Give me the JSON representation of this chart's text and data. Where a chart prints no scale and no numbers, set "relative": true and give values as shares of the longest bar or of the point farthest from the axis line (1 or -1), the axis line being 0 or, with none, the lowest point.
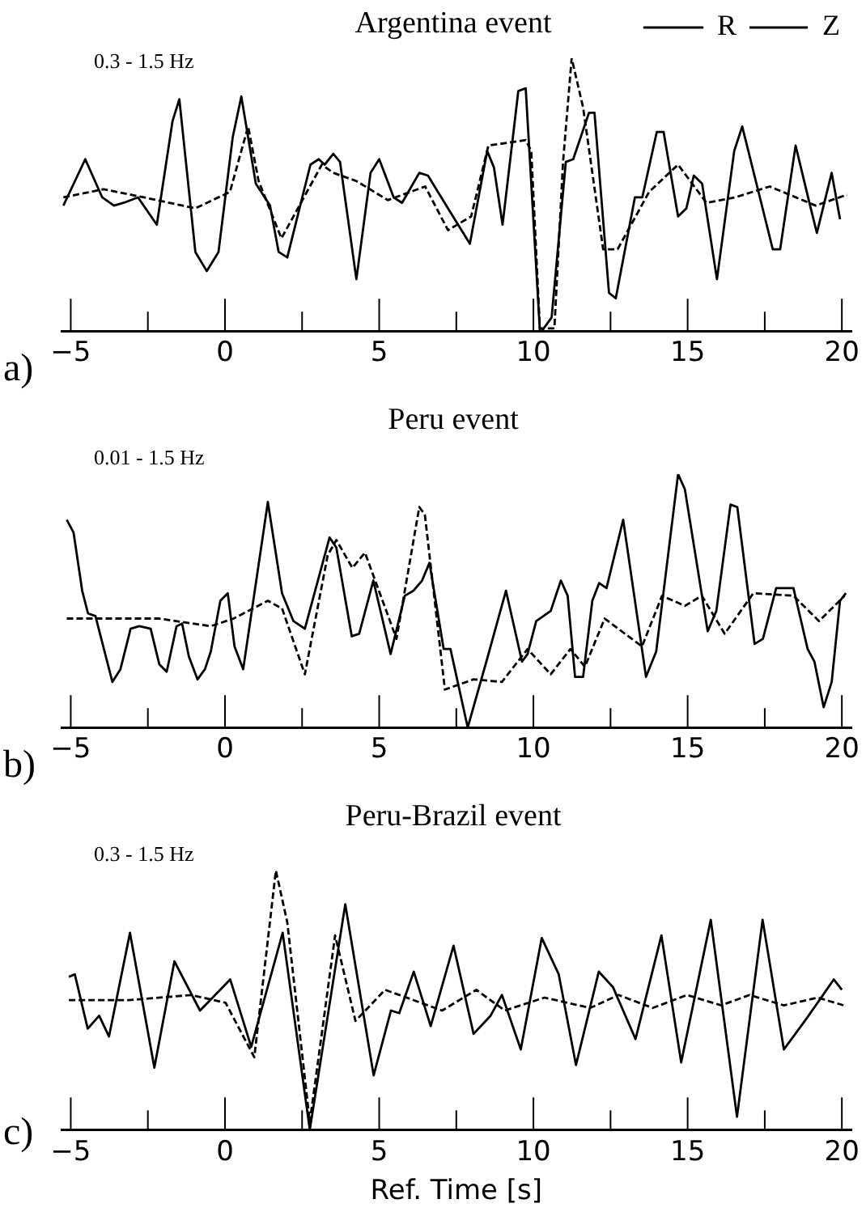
{
  "chart_data": [
    {
      "type": "line",
      "title": "Argentina event",
      "annotations": [
        "0.3 - 1.5 Hz",
        "a)"
      ],
      "relative": true,
      "legend": "top right",
      "xlim": [
        -5.3,
        20.3
      ],
      "xticks": [
        -5,
        {
          "value": -2.5,
          "label": null
        },
        0,
        {
          "value": 2.5,
          "label": null
        },
        5,
        {
          "value": 7.5,
          "label": null
        },
        10,
        {
          "value": 12.5,
          "label": null
        },
        15,
        {
          "value": 17.5,
          "label": null
        },
        20
      ],
      "tick_labels": "x",
      "series": [
        {
          "name": "R",
          "color": "#000000",
          "line_style": "solid",
          "x": [
            -5.24,
            -4.53,
            -3.98,
            -3.6,
            -3.29,
            -2.82,
            -2.21,
            -1.7,
            -1.48,
            -0.96,
            -0.59,
            -0.21,
            0.25,
            0.53,
            1.0,
            1.46,
            1.74,
            2.02,
            2.77,
            3.04,
            3.23,
            3.51,
            3.73,
            4.26,
            4.72,
            5.0,
            5.47,
            5.74,
            6.3,
            6.58,
            7.23,
            7.94,
            8.5,
            8.72,
            9.0,
            9.51,
            9.75,
            10.21,
            10.27,
            10.59,
            11.05,
            11.29,
            11.8,
            11.98,
            12.45,
            12.67,
            13.29,
            13.53,
            14.0,
            14.22,
            14.69,
            14.96,
            15.2,
            15.47,
            15.95,
            16.51,
            16.77,
            17.76,
            18.0,
            18.5,
            18.97,
            19.19,
            19.67,
            19.94
          ],
          "values": [
            0.46,
            0.63,
            0.49,
            0.46,
            0.47,
            0.49,
            0.39,
            0.77,
            0.85,
            0.29,
            0.22,
            0.29,
            0.71,
            0.86,
            0.54,
            0.46,
            0.29,
            0.27,
            0.61,
            0.63,
            0.61,
            0.65,
            0.62,
            0.19,
            0.58,
            0.63,
            0.49,
            0.47,
            0.58,
            0.57,
            0.45,
            0.32,
            0.66,
            0.6,
            0.39,
            0.88,
            0.89,
            0.0,
            0.0,
            0.05,
            0.62,
            0.63,
            0.8,
            0.8,
            0.14,
            0.12,
            0.49,
            0.49,
            0.73,
            0.73,
            0.42,
            0.45,
            0.57,
            0.54,
            0.19,
            0.66,
            0.75,
            0.3,
            0.3,
            0.68,
            0.46,
            0.36,
            0.58,
            0.41
          ]
        },
        {
          "name": "Z",
          "color": "#000000",
          "line_style": "dashed",
          "x": [
            -5.24,
            -3.94,
            -2.63,
            -0.96,
            0.16,
            0.75,
            1.09,
            1.83,
            3.14,
            3.51,
            4.26,
            5.28,
            6.49,
            7.23,
            7.98,
            8.54,
            9.75,
            9.93,
            10.21,
            10.68,
            10.96,
            11.24,
            11.61,
            12.26,
            12.73,
            13.75,
            14.69,
            15.61,
            16.54,
            17.66,
            19.15,
            20.17
          ],
          "values": [
            0.49,
            0.52,
            0.49,
            0.45,
            0.51,
            0.75,
            0.55,
            0.34,
            0.61,
            0.58,
            0.55,
            0.48,
            0.53,
            0.37,
            0.42,
            0.68,
            0.7,
            0.66,
            0.01,
            0.01,
            0.62,
            1.0,
            0.82,
            0.3,
            0.3,
            0.51,
            0.61,
            0.47,
            0.49,
            0.53,
            0.46,
            0.5
          ]
        }
      ]
    },
    {
      "type": "line",
      "title": "Peru event",
      "annotations": [
        "0.01 - 1.5 Hz",
        "b)"
      ],
      "relative": true,
      "xlim": [
        -5.3,
        20.3
      ],
      "xticks": [
        -5,
        {
          "value": -2.5,
          "label": null
        },
        0,
        {
          "value": 2.5,
          "label": null
        },
        5,
        {
          "value": 7.5,
          "label": null
        },
        10,
        {
          "value": 12.5,
          "label": null
        },
        15,
        {
          "value": 17.5,
          "label": null
        },
        20
      ],
      "tick_labels": "x",
      "series": [
        {
          "color": "#000000",
          "line_style": "solid",
          "x": [
            -5.13,
            -4.91,
            -4.63,
            -4.44,
            -4.2,
            -3.65,
            -3.39,
            -3.06,
            -2.78,
            -2.41,
            -2.13,
            -1.89,
            -1.57,
            -1.39,
            -1.17,
            -0.89,
            -0.65,
            -0.46,
            -0.15,
            0.09,
            0.31,
            0.59,
            1.39,
            1.85,
            2.22,
            2.59,
            3.39,
            3.61,
            4.11,
            4.35,
            4.81,
            5.37,
            5.83,
            6.11,
            6.39,
            6.63,
            7.09,
            7.31,
            7.87,
            8.52,
            9.11,
            9.63,
            9.81,
            10.09,
            10.56,
            10.89,
            11.11,
            11.35,
            11.61,
            11.91,
            12.13,
            12.37,
            12.91,
            13.65,
            13.98,
            14.69,
            14.91,
            15.65,
            15.93,
            16.39,
            16.61,
            17.17,
            17.44,
            17.87,
            18.43,
            18.89,
            19.11,
            19.41,
            19.67,
            19.94,
            20.13
          ],
          "values": [
            0.82,
            0.77,
            0.54,
            0.45,
            0.44,
            0.18,
            0.23,
            0.39,
            0.4,
            0.39,
            0.25,
            0.22,
            0.4,
            0.41,
            0.28,
            0.19,
            0.23,
            0.3,
            0.5,
            0.53,
            0.32,
            0.23,
            0.89,
            0.53,
            0.42,
            0.39,
            0.75,
            0.71,
            0.36,
            0.37,
            0.58,
            0.29,
            0.52,
            0.54,
            0.58,
            0.65,
            0.31,
            0.31,
            0.0,
            0.28,
            0.54,
            0.26,
            0.29,
            0.42,
            0.46,
            0.58,
            0.52,
            0.2,
            0.2,
            0.5,
            0.57,
            0.55,
            0.82,
            0.2,
            0.3,
            1.0,
            0.94,
            0.38,
            0.46,
            0.88,
            0.87,
            0.33,
            0.35,
            0.55,
            0.55,
            0.31,
            0.26,
            0.08,
            0.18,
            0.5,
            0.53
          ]
        },
        {
          "color": "#000000",
          "line_style": "dashed",
          "x": [
            -5.13,
            -3.61,
            -2.13,
            -0.46,
            0.28,
            1.39,
            1.85,
            2.59,
            3.33,
            3.61,
            4.13,
            4.54,
            5.56,
            6.3,
            6.48,
            7.13,
            8.06,
            8.98,
            9.81,
            10.56,
            11.2,
            11.67,
            12.31,
            13.52,
            14.17,
            14.91,
            15.46,
            16.2,
            17.13,
            18.43,
            19.26,
            20.09
          ],
          "values": [
            0.43,
            0.43,
            0.43,
            0.4,
            0.43,
            0.5,
            0.47,
            0.21,
            0.68,
            0.74,
            0.63,
            0.69,
            0.35,
            0.87,
            0.84,
            0.15,
            0.19,
            0.18,
            0.31,
            0.21,
            0.31,
            0.24,
            0.43,
            0.32,
            0.52,
            0.48,
            0.52,
            0.37,
            0.53,
            0.52,
            0.42,
            0.52
          ]
        }
      ]
    },
    {
      "type": "line",
      "title": "Peru-Brazil event",
      "xlabel": "Ref. Time [s]",
      "annotations": [
        "0.3 - 1.5 Hz",
        "c)"
      ],
      "relative": true,
      "xlim": [
        -5.3,
        20.3
      ],
      "xticks": [
        -5,
        {
          "value": -2.5,
          "label": null
        },
        0,
        {
          "value": 2.5,
          "label": null
        },
        5,
        {
          "value": 7.5,
          "label": null
        },
        10,
        {
          "value": 12.5,
          "label": null
        },
        15,
        {
          "value": 17.5,
          "label": null
        },
        20
      ],
      "tick_labels": "x",
      "series": [
        {
          "color": "#000000",
          "line_style": "solid",
          "x": [
            -5.06,
            -4.87,
            -4.45,
            -4.08,
            -3.76,
            -3.08,
            -2.29,
            -1.64,
            -0.81,
            0.17,
            0.85,
            1.87,
            2.75,
            3.9,
            4.82,
            5.38,
            5.65,
            6.12,
            6.67,
            7.41,
            8.06,
            8.61,
            8.98,
            9.59,
            10.27,
            10.82,
            11.38,
            12.12,
            12.58,
            13.31,
            14.15,
            14.79,
            15.75,
            16.6,
            17.43,
            18.12,
            18.86,
            19.74,
            20.0
          ],
          "values": [
            0.59,
            0.6,
            0.39,
            0.44,
            0.36,
            0.76,
            0.24,
            0.65,
            0.46,
            0.58,
            0.32,
            0.76,
            0.0,
            0.87,
            0.21,
            0.46,
            0.45,
            0.61,
            0.4,
            0.71,
            0.37,
            0.44,
            0.52,
            0.31,
            0.74,
            0.6,
            0.25,
            0.61,
            0.55,
            0.35,
            0.75,
            0.26,
            0.81,
            0.05,
            0.81,
            0.31,
            0.43,
            0.58,
            0.54
          ]
        },
        {
          "color": "#000000",
          "line_style": "dashed",
          "x": [
            -5.06,
            -3.12,
            -1.09,
            0.02,
            0.95,
            1.65,
            2.02,
            2.75,
            3.57,
            4.23,
            5.19,
            6.12,
            7.04,
            8.15,
            9.07,
            10.36,
            11.84,
            12.76,
            13.87,
            14.98,
            16.09,
            17.01,
            18.12,
            19.22,
            20.06
          ],
          "values": [
            0.5,
            0.5,
            0.52,
            0.49,
            0.28,
            1.0,
            0.8,
            0.03,
            0.75,
            0.42,
            0.54,
            0.5,
            0.46,
            0.54,
            0.46,
            0.51,
            0.47,
            0.52,
            0.47,
            0.52,
            0.48,
            0.52,
            0.48,
            0.51,
            0.48
          ]
        }
      ]
    }
  ]
}
